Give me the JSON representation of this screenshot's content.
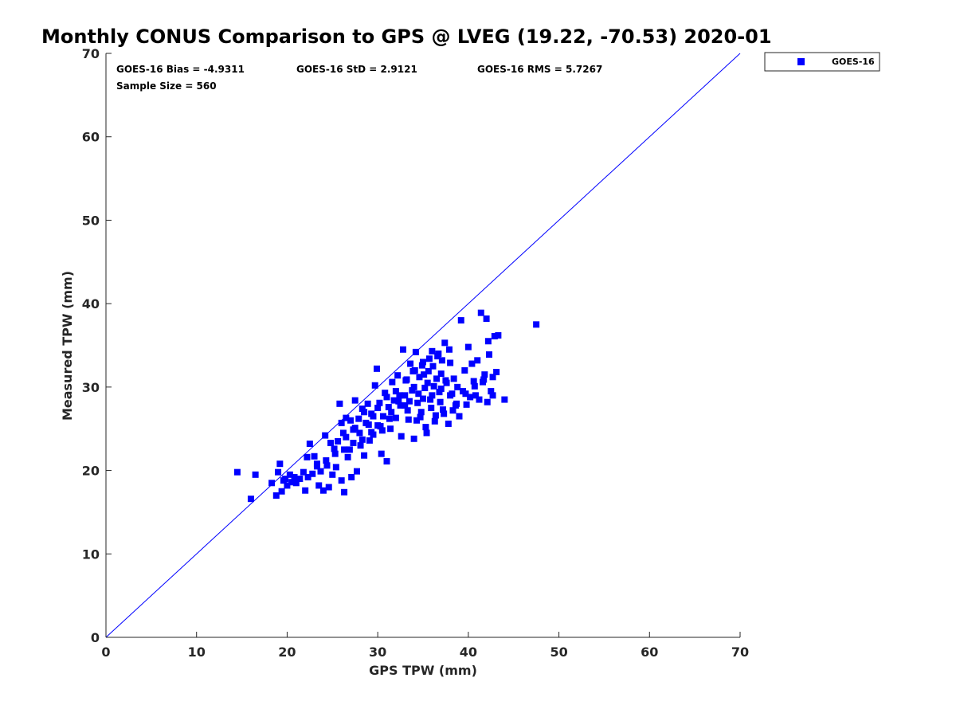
{
  "chart_data": {
    "type": "scatter",
    "title": "Monthly CONUS Comparison to GPS @ LVEG (19.22, -70.53) 2020-01",
    "xlabel": "GPS TPW (mm)",
    "ylabel": "Measured TPW (mm)",
    "xlim": [
      0,
      70
    ],
    "ylim": [
      0,
      70
    ],
    "xticks": [
      0,
      10,
      20,
      30,
      40,
      50,
      60,
      70
    ],
    "yticks": [
      0,
      10,
      20,
      30,
      40,
      50,
      60,
      70
    ],
    "grid": false,
    "legend_placement": "top-right outside",
    "reference_line": {
      "from": [
        0,
        0
      ],
      "to": [
        70,
        70
      ],
      "color": "#0000ff"
    },
    "stats": {
      "bias": "GOES-16 Bias = -4.9311",
      "std": "GOES-16 StD = 2.9121",
      "rms": "GOES-16 RMS = 5.7267",
      "sample_size": "Sample Size = 560"
    },
    "series": [
      {
        "name": "GOES-16",
        "color": "#0000ff",
        "marker": "square",
        "points": [
          [
            14.5,
            19.8
          ],
          [
            16.0,
            16.6
          ],
          [
            16.5,
            19.5
          ],
          [
            18.3,
            18.5
          ],
          [
            18.8,
            17.0
          ],
          [
            19.0,
            19.8
          ],
          [
            19.2,
            20.8
          ],
          [
            19.4,
            17.5
          ],
          [
            19.6,
            18.8
          ],
          [
            19.8,
            19.0
          ],
          [
            20.0,
            18.2
          ],
          [
            20.3,
            19.5
          ],
          [
            20.5,
            18.6
          ],
          [
            20.8,
            19.2
          ],
          [
            21.0,
            18.5
          ],
          [
            21.4,
            19.0
          ],
          [
            21.8,
            19.8
          ],
          [
            22.0,
            17.6
          ],
          [
            22.2,
            21.6
          ],
          [
            22.5,
            23.2
          ],
          [
            22.8,
            19.6
          ],
          [
            23.0,
            21.7
          ],
          [
            23.3,
            20.8
          ],
          [
            23.5,
            18.2
          ],
          [
            23.7,
            19.9
          ],
          [
            24.0,
            17.6
          ],
          [
            24.2,
            24.2
          ],
          [
            24.4,
            20.6
          ],
          [
            24.6,
            18.0
          ],
          [
            24.8,
            23.3
          ],
          [
            25.0,
            19.5
          ],
          [
            25.2,
            22.6
          ],
          [
            25.4,
            20.4
          ],
          [
            25.6,
            23.5
          ],
          [
            25.8,
            28.0
          ],
          [
            26.0,
            18.8
          ],
          [
            26.2,
            24.5
          ],
          [
            26.3,
            17.4
          ],
          [
            26.5,
            26.3
          ],
          [
            26.7,
            21.6
          ],
          [
            26.9,
            22.5
          ],
          [
            27.1,
            19.2
          ],
          [
            27.3,
            24.9
          ],
          [
            27.5,
            28.4
          ],
          [
            27.7,
            19.9
          ],
          [
            27.9,
            26.2
          ],
          [
            28.1,
            23.0
          ],
          [
            28.3,
            27.4
          ],
          [
            28.5,
            21.8
          ],
          [
            28.7,
            25.7
          ],
          [
            28.9,
            28.0
          ],
          [
            29.1,
            23.6
          ],
          [
            29.3,
            26.8
          ],
          [
            29.5,
            24.3
          ],
          [
            29.7,
            30.2
          ],
          [
            29.9,
            32.2
          ],
          [
            30.0,
            25.4
          ],
          [
            30.2,
            28.1
          ],
          [
            30.4,
            22.0
          ],
          [
            30.6,
            26.5
          ],
          [
            30.8,
            29.3
          ],
          [
            31.0,
            21.1
          ],
          [
            31.2,
            27.6
          ],
          [
            31.4,
            25.0
          ],
          [
            31.6,
            30.6
          ],
          [
            31.8,
            28.4
          ],
          [
            32.0,
            26.3
          ],
          [
            32.2,
            31.4
          ],
          [
            32.4,
            29.0
          ],
          [
            32.6,
            24.1
          ],
          [
            32.8,
            34.5
          ],
          [
            33.0,
            27.8
          ],
          [
            33.2,
            30.9
          ],
          [
            33.4,
            26.1
          ],
          [
            33.6,
            32.8
          ],
          [
            33.8,
            29.6
          ],
          [
            34.0,
            23.8
          ],
          [
            34.2,
            34.2
          ],
          [
            34.4,
            28.1
          ],
          [
            34.6,
            31.2
          ],
          [
            34.8,
            27.0
          ],
          [
            35.0,
            33.0
          ],
          [
            35.2,
            29.9
          ],
          [
            35.4,
            24.5
          ],
          [
            35.6,
            31.9
          ],
          [
            35.8,
            28.5
          ],
          [
            36.0,
            34.3
          ],
          [
            36.2,
            30.1
          ],
          [
            36.4,
            26.6
          ],
          [
            36.6,
            33.7
          ],
          [
            36.8,
            29.4
          ],
          [
            37.0,
            31.6
          ],
          [
            37.2,
            27.3
          ],
          [
            37.4,
            35.3
          ],
          [
            37.6,
            30.5
          ],
          [
            37.8,
            25.6
          ],
          [
            38.0,
            32.9
          ],
          [
            38.2,
            29.2
          ],
          [
            38.4,
            31.0
          ],
          [
            38.6,
            27.8
          ],
          [
            38.8,
            30.0
          ],
          [
            39.0,
            26.5
          ],
          [
            39.2,
            38.0
          ],
          [
            39.4,
            29.5
          ],
          [
            39.6,
            32.0
          ],
          [
            39.8,
            27.9
          ],
          [
            40.0,
            34.8
          ],
          [
            40.2,
            28.8
          ],
          [
            40.4,
            32.8
          ],
          [
            40.6,
            30.7
          ],
          [
            40.8,
            29.0
          ],
          [
            41.0,
            33.2
          ],
          [
            41.2,
            28.5
          ],
          [
            41.4,
            38.9
          ],
          [
            41.6,
            30.6
          ],
          [
            41.8,
            31.5
          ],
          [
            42.0,
            38.2
          ],
          [
            42.1,
            28.2
          ],
          [
            42.2,
            35.5
          ],
          [
            42.3,
            33.9
          ],
          [
            42.5,
            29.5
          ],
          [
            42.7,
            31.2
          ],
          [
            42.9,
            36.1
          ],
          [
            43.1,
            31.8
          ],
          [
            43.3,
            36.2
          ],
          [
            44.0,
            28.5
          ],
          [
            47.5,
            37.5
          ],
          [
            26.0,
            25.7
          ],
          [
            26.5,
            24.0
          ],
          [
            27.0,
            26.0
          ],
          [
            27.5,
            25.1
          ],
          [
            28.0,
            24.5
          ],
          [
            28.5,
            27.0
          ],
          [
            29.0,
            25.5
          ],
          [
            29.5,
            26.5
          ],
          [
            30.0,
            27.5
          ],
          [
            30.5,
            24.8
          ],
          [
            31.0,
            28.8
          ],
          [
            31.5,
            27.0
          ],
          [
            32.0,
            29.5
          ],
          [
            32.5,
            27.8
          ],
          [
            33.0,
            29.0
          ],
          [
            33.5,
            28.3
          ],
          [
            34.0,
            30.0
          ],
          [
            34.5,
            29.2
          ],
          [
            35.0,
            28.6
          ],
          [
            35.5,
            30.5
          ],
          [
            36.0,
            29.0
          ],
          [
            36.5,
            31.0
          ],
          [
            37.0,
            29.8
          ],
          [
            37.5,
            30.8
          ],
          [
            38.0,
            29.0
          ],
          [
            33.3,
            27.2
          ],
          [
            34.7,
            26.4
          ],
          [
            35.9,
            27.5
          ],
          [
            36.9,
            28.2
          ],
          [
            32.3,
            28.3
          ],
          [
            31.3,
            26.2
          ],
          [
            30.3,
            25.3
          ],
          [
            29.3,
            24.6
          ],
          [
            28.3,
            23.7
          ],
          [
            27.3,
            23.3
          ],
          [
            26.3,
            22.5
          ],
          [
            25.3,
            22.0
          ],
          [
            24.3,
            21.2
          ],
          [
            23.3,
            20.5
          ],
          [
            22.3,
            19.2
          ],
          [
            34.1,
            32.0
          ],
          [
            35.1,
            31.5
          ],
          [
            36.1,
            32.5
          ],
          [
            37.1,
            33.2
          ],
          [
            37.9,
            34.5
          ],
          [
            36.7,
            34.0
          ],
          [
            35.7,
            33.4
          ],
          [
            34.9,
            32.6
          ],
          [
            33.9,
            31.9
          ],
          [
            33.1,
            30.8
          ],
          [
            38.7,
            28.0
          ],
          [
            39.7,
            29.2
          ],
          [
            40.7,
            30.1
          ],
          [
            41.7,
            30.9
          ],
          [
            42.7,
            29.0
          ],
          [
            38.3,
            27.2
          ],
          [
            37.3,
            26.8
          ],
          [
            36.3,
            25.9
          ],
          [
            35.3,
            25.2
          ],
          [
            34.3,
            26.0
          ]
        ]
      }
    ]
  }
}
